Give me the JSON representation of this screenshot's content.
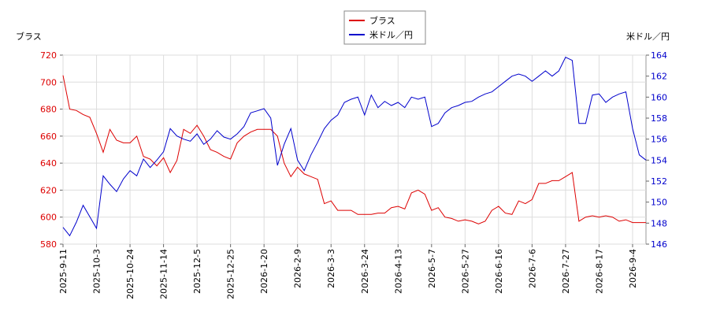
{
  "chart_data": {
    "type": "line",
    "ylabel": "ブラス",
    "y2label": "米ドル／円",
    "categories": [
      "2025-9-11",
      null,
      null,
      null,
      null,
      "2025-10-3",
      null,
      null,
      null,
      null,
      "2025-10-24",
      null,
      null,
      null,
      null,
      "2025-11-14",
      null,
      null,
      null,
      null,
      "2025-12-5",
      null,
      null,
      null,
      null,
      "2025-12-25",
      null,
      null,
      null,
      null,
      "2026-1-20",
      null,
      null,
      null,
      null,
      "2026-2-9",
      null,
      null,
      null,
      null,
      "2026-3-3",
      null,
      null,
      null,
      null,
      "2026-3-24",
      null,
      null,
      null,
      null,
      "2026-4-13",
      null,
      null,
      null,
      null,
      "2026-5-7",
      null,
      null,
      null,
      null,
      "2026-5-27",
      null,
      null,
      null,
      null,
      "2026-6-16",
      null,
      null,
      null,
      null,
      "2026-7-6",
      null,
      null,
      null,
      null,
      "2026-7-27",
      null,
      null,
      null,
      null,
      "2026-8-17",
      null,
      null,
      null,
      null,
      "2026-9-4",
      null,
      null
    ],
    "series": [
      {
        "name": "ブラス",
        "color": "#dd0000",
        "axis": "y",
        "values": [
          705,
          680,
          679,
          676,
          674,
          662,
          648,
          665,
          657,
          655,
          655,
          660,
          645,
          643,
          638,
          644,
          633,
          642,
          665,
          662,
          668,
          660,
          650,
          648,
          645,
          643,
          655,
          660,
          663,
          665,
          665,
          665,
          660,
          640,
          630,
          637,
          632,
          630,
          628,
          610,
          612,
          605,
          605,
          605,
          602,
          602,
          602,
          603,
          603,
          607,
          608,
          606,
          618,
          620,
          617,
          605,
          607,
          600,
          599,
          597,
          598,
          597,
          595,
          597,
          605,
          608,
          603,
          602,
          612,
          610,
          613,
          625,
          625,
          627,
          627,
          630,
          633,
          597,
          600,
          601,
          600,
          601,
          600,
          597,
          598,
          596,
          596,
          596
        ]
      },
      {
        "name": "米ドル／円",
        "color": "#0000cc",
        "axis": "y2",
        "values": [
          147.6,
          146.8,
          148.1,
          149.7,
          148.6,
          147.5,
          152.5,
          151.7,
          151.0,
          152.2,
          153.0,
          152.5,
          154.1,
          153.3,
          154.0,
          154.8,
          157.0,
          156.3,
          156.0,
          155.8,
          156.5,
          155.5,
          156.0,
          156.8,
          156.2,
          156.0,
          156.5,
          157.2,
          158.5,
          158.7,
          158.9,
          158.0,
          153.5,
          155.5,
          157.0,
          154.0,
          153.0,
          154.5,
          155.7,
          157.0,
          157.8,
          158.3,
          159.5,
          159.8,
          160.0,
          158.3,
          160.2,
          159.0,
          159.6,
          159.2,
          159.5,
          159.0,
          160.0,
          159.8,
          160.0,
          157.2,
          157.5,
          158.5,
          159.0,
          159.2,
          159.5,
          159.6,
          160.0,
          160.3,
          160.5,
          161.0,
          161.5,
          162.0,
          162.2,
          162.0,
          161.5,
          162.0,
          162.5,
          162.0,
          162.5,
          163.8,
          163.5,
          157.5,
          157.5,
          160.2,
          160.3,
          159.5,
          160.0,
          160.3,
          160.5,
          157.0,
          154.5,
          154.0
        ]
      }
    ],
    "ylim": [
      580,
      720
    ],
    "yticks": [
      580,
      600,
      620,
      640,
      660,
      680,
      700,
      720
    ],
    "y2lim": [
      146,
      164
    ],
    "y2ticks": [
      146,
      148,
      150,
      152,
      154,
      156,
      158,
      160,
      162,
      164
    ],
    "grid": true,
    "legend": "top"
  }
}
